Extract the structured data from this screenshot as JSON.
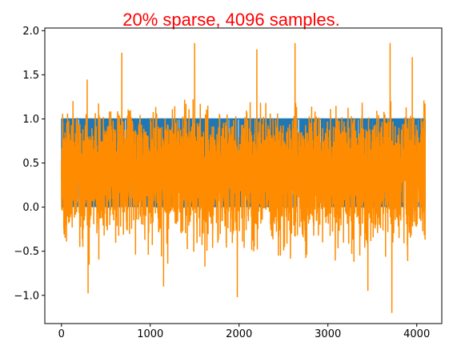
{
  "chart_data": {
    "type": "line",
    "title": "20% sparse, 4096 samples.",
    "title_color": "#ff0000",
    "xlabel": "",
    "ylabel": "",
    "n_samples": 4096,
    "xlim": [
      -187,
      4282
    ],
    "ylim": [
      -1.32,
      2.03
    ],
    "x_ticks": [
      0,
      1000,
      2000,
      3000,
      4000
    ],
    "x_tick_labels": [
      "0",
      "1000",
      "2000",
      "3000",
      "4000"
    ],
    "y_ticks": [
      -1.0,
      -0.5,
      0.0,
      0.5,
      1.0,
      1.5,
      2.0
    ],
    "y_tick_labels": [
      "−1.0",
      "−0.5",
      "0.0",
      "0.5",
      "1.0",
      "1.5",
      "2.0"
    ],
    "grid": false,
    "legend": "none",
    "series": [
      {
        "color": "#1f77b4",
        "style": "binary 0/1 indicator, 20% sparse",
        "values_range": [
          0,
          1
        ]
      },
      {
        "color": "#ff8c00",
        "style": "noisy signal",
        "values_range": [
          -1.2,
          1.87
        ],
        "peaks": [
          {
            "x": 1500,
            "y": 1.86
          },
          {
            "x": 2630,
            "y": 1.86
          },
          {
            "x": 3700,
            "y": 1.86
          },
          {
            "x": 680,
            "y": 1.75
          },
          {
            "x": 2200,
            "y": 1.79
          },
          {
            "x": 3950,
            "y": 1.7
          },
          {
            "x": 3720,
            "y": -1.2
          },
          {
            "x": 300,
            "y": -0.98
          },
          {
            "x": 1980,
            "y": -1.02
          },
          {
            "x": 1150,
            "y": -0.9
          },
          {
            "x": 3450,
            "y": -0.95
          }
        ]
      }
    ]
  }
}
